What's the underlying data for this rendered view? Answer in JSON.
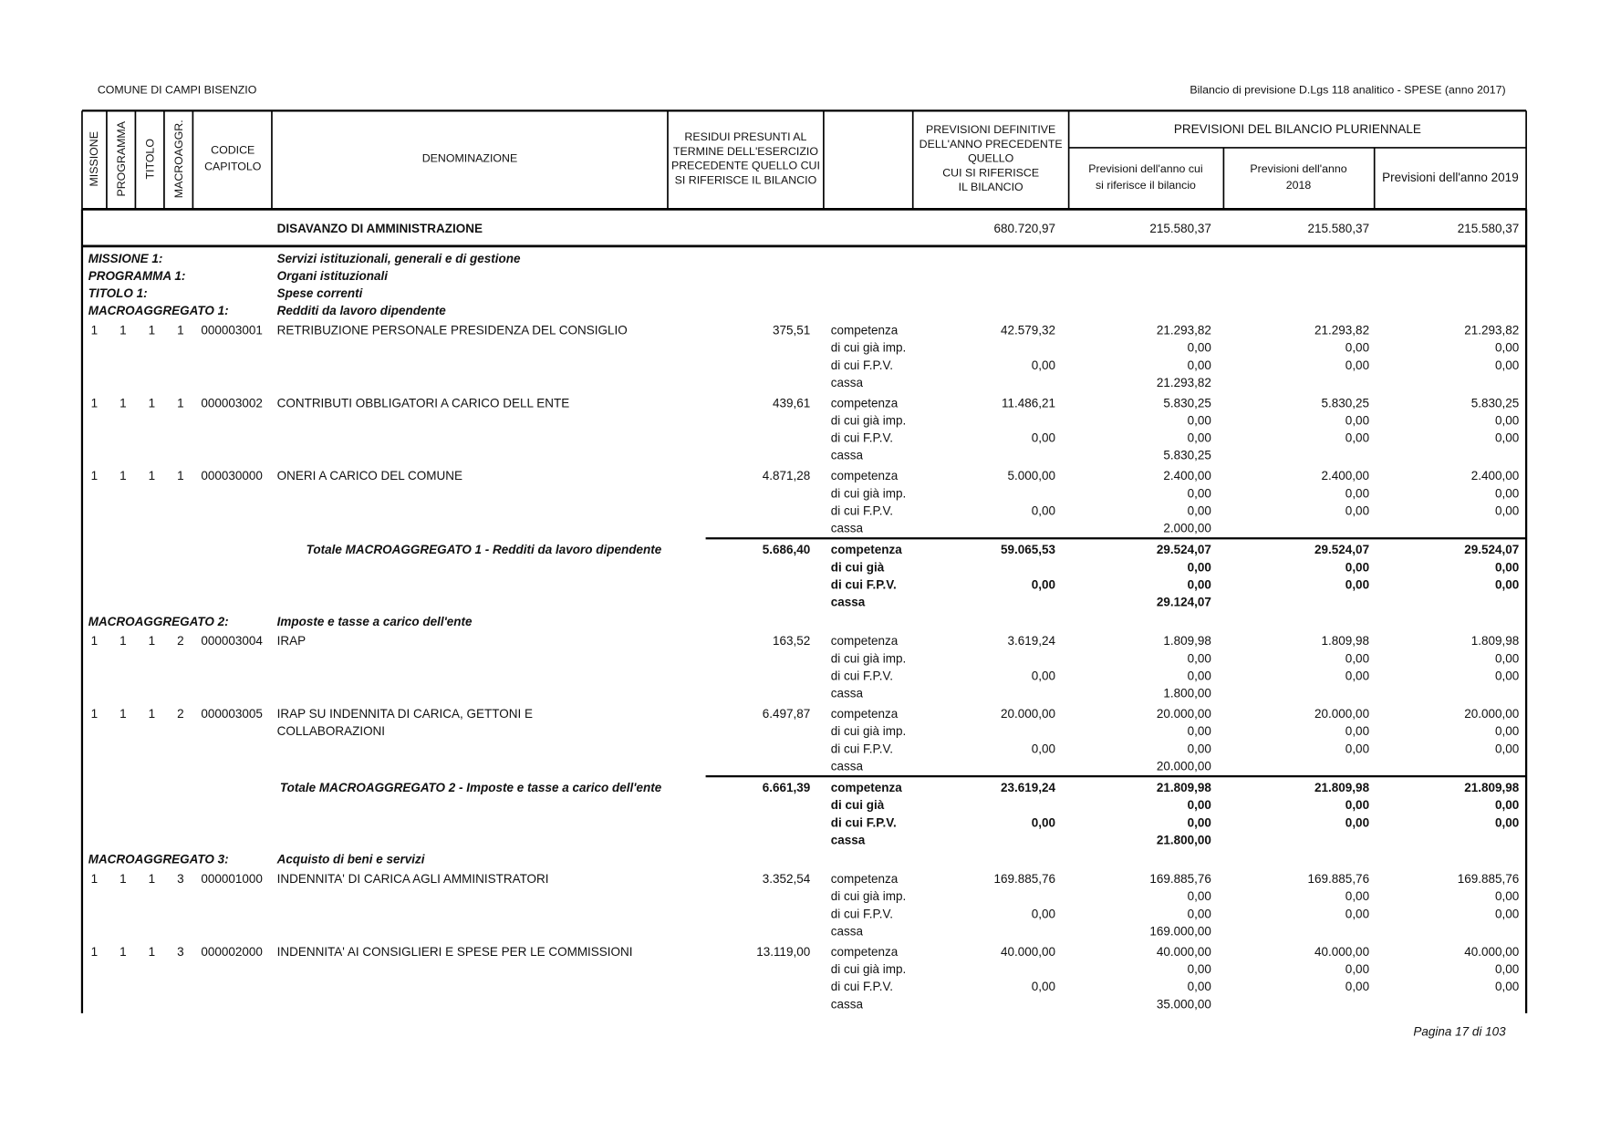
{
  "header": {
    "entity": "COMUNE DI CAMPI BISENZIO",
    "report": "Bilancio di previsione D.Lgs 118 analitico - SPESE (anno 2017)"
  },
  "columns": {
    "missione": "MISSIONE",
    "programma": "PROGRAMMA",
    "titolo": "TITOLO",
    "macroaggregato": "MACROAGGR.",
    "codice": [
      "CODICE",
      "CAPITOLO"
    ],
    "denominazione": "DENOMINAZIONE",
    "residui": [
      "RESIDUI PRESUNTI AL",
      "TERMINE DELL'ESERCIZIO",
      "PRECEDENTE QUELLO CUI",
      "SI RIFERISCE IL BILANCIO"
    ],
    "previsioni_definitive": [
      "PREVISIONI DEFINITIVE",
      "DELL'ANNO PRECEDENTE",
      "QUELLO",
      "CUI SI RIFERISCE",
      "IL BILANCIO"
    ],
    "pluriennale": "PREVISIONI DEL BILANCIO PLURIENNALE",
    "anno_bilancio": [
      "Previsioni dell'anno cui",
      "si riferisce il bilancio"
    ],
    "anno_2018": [
      "Previsioni dell'anno",
      "2018"
    ],
    "anno_2019": "Previsioni dell'anno 2019"
  },
  "disavanzo": {
    "label": "DISAVANZO DI AMMINISTRAZIONE",
    "values": [
      "680.720,97",
      "215.580,37",
      "215.580,37",
      "215.580,37"
    ]
  },
  "body": [
    {
      "type": "heading",
      "lines": [
        [
          "MISSIONE 1:",
          "Servizi istituzionali, generali e di gestione"
        ],
        [
          "PROGRAMMA 1:",
          "Organi istituzionali"
        ],
        [
          "TITOLO 1:",
          "Spese correnti"
        ],
        [
          "MACROAGGREGATO 1:",
          "Redditi da lavoro dipendente"
        ]
      ]
    },
    {
      "type": "item",
      "codes": [
        "1",
        "1",
        "1",
        "1"
      ],
      "capitolo": "000003001",
      "name": [
        "RETRIBUZIONE PERSONALE PRESIDENZA DEL CONSIGLIO"
      ],
      "residui": "375,51",
      "rows": [
        [
          "competenza",
          "42.579,32",
          "21.293,82",
          "21.293,82",
          "21.293,82"
        ],
        [
          "di cui già imp.",
          null,
          "0,00",
          "0,00",
          "0,00"
        ],
        [
          "di cui F.P.V.",
          "0,00",
          "0,00",
          "0,00",
          "0,00"
        ],
        [
          "cassa",
          null,
          "21.293,82",
          null,
          null
        ]
      ]
    },
    {
      "type": "item",
      "codes": [
        "1",
        "1",
        "1",
        "1"
      ],
      "capitolo": "000003002",
      "name": [
        "CONTRIBUTI OBBLIGATORI A CARICO DELL ENTE"
      ],
      "residui": "439,61",
      "rows": [
        [
          "competenza",
          "11.486,21",
          "5.830,25",
          "5.830,25",
          "5.830,25"
        ],
        [
          "di cui già imp.",
          null,
          "0,00",
          "0,00",
          "0,00"
        ],
        [
          "di cui F.P.V.",
          "0,00",
          "0,00",
          "0,00",
          "0,00"
        ],
        [
          "cassa",
          null,
          "5.830,25",
          null,
          null
        ]
      ]
    },
    {
      "type": "item",
      "codes": [
        "1",
        "1",
        "1",
        "1"
      ],
      "capitolo": "000030000",
      "name": [
        "ONERI A CARICO DEL COMUNE"
      ],
      "residui": "4.871,28",
      "rows": [
        [
          "competenza",
          "5.000,00",
          "2.400,00",
          "2.400,00",
          "2.400,00"
        ],
        [
          "di cui già imp.",
          null,
          "0,00",
          "0,00",
          "0,00"
        ],
        [
          "di cui F.P.V.",
          "0,00",
          "0,00",
          "0,00",
          "0,00"
        ],
        [
          "cassa",
          null,
          "2.000,00",
          null,
          null
        ]
      ]
    },
    {
      "type": "total",
      "label": "Totale MACROAGGREGATO 1 - Redditi da lavoro dipendente",
      "residui": "5.686,40",
      "rows": [
        [
          "competenza",
          "59.065,53",
          "29.524,07",
          "29.524,07",
          "29.524,07"
        ],
        [
          "di cui già",
          null,
          "0,00",
          "0,00",
          "0,00"
        ],
        [
          "di cui F.P.V.",
          "0,00",
          "0,00",
          "0,00",
          "0,00"
        ],
        [
          "cassa",
          null,
          "29.124,07",
          null,
          null
        ]
      ]
    },
    {
      "type": "heading",
      "lines": [
        [
          "MACROAGGREGATO 2:",
          "Imposte e tasse a carico dell'ente"
        ]
      ]
    },
    {
      "type": "item",
      "codes": [
        "1",
        "1",
        "1",
        "2"
      ],
      "capitolo": "000003004",
      "name": [
        "IRAP"
      ],
      "residui": "163,52",
      "rows": [
        [
          "competenza",
          "3.619,24",
          "1.809,98",
          "1.809,98",
          "1.809,98"
        ],
        [
          "di cui già imp.",
          null,
          "0,00",
          "0,00",
          "0,00"
        ],
        [
          "di cui F.P.V.",
          "0,00",
          "0,00",
          "0,00",
          "0,00"
        ],
        [
          "cassa",
          null,
          "1.800,00",
          null,
          null
        ]
      ]
    },
    {
      "type": "item",
      "codes": [
        "1",
        "1",
        "1",
        "2"
      ],
      "capitolo": "000003005",
      "name": [
        "IRAP SU INDENNITA DI CARICA, GETTONI E",
        "COLLABORAZIONI"
      ],
      "residui": "6.497,87",
      "rows": [
        [
          "competenza",
          "20.000,00",
          "20.000,00",
          "20.000,00",
          "20.000,00"
        ],
        [
          "di cui già imp.",
          null,
          "0,00",
          "0,00",
          "0,00"
        ],
        [
          "di cui F.P.V.",
          "0,00",
          "0,00",
          "0,00",
          "0,00"
        ],
        [
          "cassa",
          null,
          "20.000,00",
          null,
          null
        ]
      ]
    },
    {
      "type": "total",
      "label": "Totale MACROAGGREGATO 2 - Imposte e tasse a carico dell'ente",
      "residui": "6.661,39",
      "rows": [
        [
          "competenza",
          "23.619,24",
          "21.809,98",
          "21.809,98",
          "21.809,98"
        ],
        [
          "di cui già",
          null,
          "0,00",
          "0,00",
          "0,00"
        ],
        [
          "di cui F.P.V.",
          "0,00",
          "0,00",
          "0,00",
          "0,00"
        ],
        [
          "cassa",
          null,
          "21.800,00",
          null,
          null
        ]
      ]
    },
    {
      "type": "heading",
      "lines": [
        [
          "MACROAGGREGATO 3:",
          "Acquisto di beni e servizi"
        ]
      ]
    },
    {
      "type": "item",
      "codes": [
        "1",
        "1",
        "1",
        "3"
      ],
      "capitolo": "000001000",
      "name": [
        "INDENNITA' DI CARICA AGLI AMMINISTRATORI"
      ],
      "residui": "3.352,54",
      "rows": [
        [
          "competenza",
          "169.885,76",
          "169.885,76",
          "169.885,76",
          "169.885,76"
        ],
        [
          "di cui già imp.",
          null,
          "0,00",
          "0,00",
          "0,00"
        ],
        [
          "di cui F.P.V.",
          "0,00",
          "0,00",
          "0,00",
          "0,00"
        ],
        [
          "cassa",
          null,
          "169.000,00",
          null,
          null
        ]
      ]
    },
    {
      "type": "item",
      "codes": [
        "1",
        "1",
        "1",
        "3"
      ],
      "capitolo": "000002000",
      "name": [
        "INDENNITA' AI CONSIGLIERI E SPESE PER LE COMMISSIONI"
      ],
      "residui": "13.119,00",
      "rows": [
        [
          "competenza",
          "40.000,00",
          "40.000,00",
          "40.000,00",
          "40.000,00"
        ],
        [
          "di cui già imp.",
          null,
          "0,00",
          "0,00",
          "0,00"
        ],
        [
          "di cui F.P.V.",
          "0,00",
          "0,00",
          "0,00",
          "0,00"
        ],
        [
          "cassa",
          null,
          "35.000,00",
          null,
          null
        ]
      ]
    }
  ],
  "footer": "Pagina 17 di 103"
}
